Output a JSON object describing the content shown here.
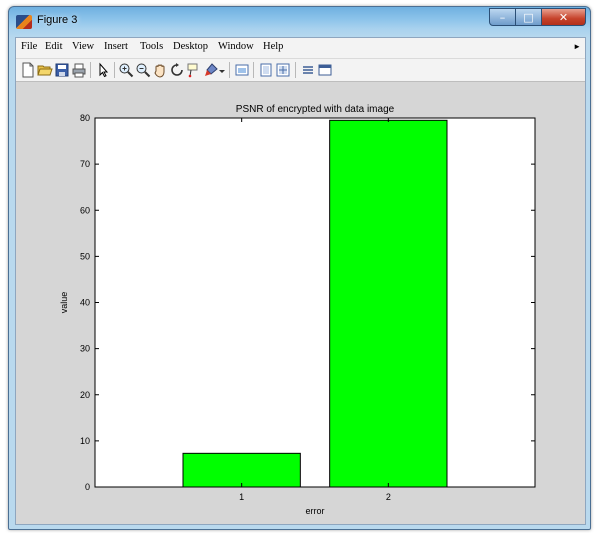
{
  "window": {
    "title": "Figure 3",
    "controls": {
      "minimize": "–",
      "maximize": "□",
      "close": "✕"
    }
  },
  "menu": [
    "File",
    "Edit",
    "View",
    "Insert",
    "Tools",
    "Desktop",
    "Window",
    "Help"
  ],
  "toolbar": {
    "icons": [
      "new-figure-icon",
      "open-file-icon",
      "save-icon",
      "print-icon",
      "pointer-icon",
      "zoom-in-icon",
      "zoom-out-icon",
      "pan-icon",
      "rotate-3d-icon",
      "data-cursor-icon",
      "brush-icon",
      "brush-dropdown-icon",
      "link-plot-icon",
      "colorbar-icon",
      "legend-icon",
      "hide-plot-tools-icon",
      "show-plot-tools-icon"
    ]
  },
  "colors": {
    "bar": "#00ff00",
    "bar_edge": "#000000",
    "figure_bg": "#d6d6d6",
    "axes_bg": "#ffffff"
  },
  "chart_data": {
    "type": "bar",
    "title": "PSNR of encrypted with data image",
    "xlabel": "error",
    "ylabel": "value",
    "categories": [
      "1",
      "2"
    ],
    "values": [
      7.3,
      79.5
    ],
    "ylim": [
      0,
      80
    ],
    "yticks": [
      0,
      10,
      20,
      30,
      40,
      50,
      60,
      70,
      80
    ],
    "grid": false,
    "legend": "none"
  }
}
